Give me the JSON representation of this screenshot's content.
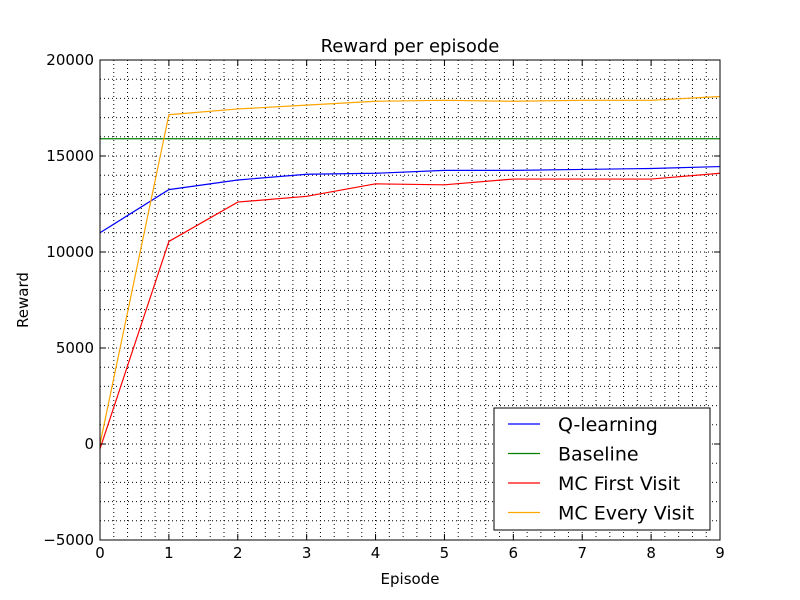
{
  "chart_data": {
    "type": "line",
    "title": "Reward per episode",
    "xlabel": "Episode",
    "ylabel": "Reward",
    "xlim": [
      0,
      9
    ],
    "ylim": [
      -5000,
      20000
    ],
    "xticks": [
      0,
      1,
      2,
      3,
      4,
      5,
      6,
      7,
      8,
      9
    ],
    "yticks": [
      -5000,
      0,
      5000,
      10000,
      15000,
      20000
    ],
    "ytick_labels": [
      "−5000",
      "0",
      "5000",
      "10000",
      "15000",
      "20000"
    ],
    "grid": "dotted minor",
    "legend_position": "lower-right",
    "x": [
      0,
      1,
      2,
      3,
      4,
      5,
      6,
      7,
      8,
      9
    ],
    "series": [
      {
        "name": "Q-learning",
        "color": "#0000ff",
        "values": [
          11000,
          13250,
          13750,
          14050,
          14100,
          14250,
          14250,
          14300,
          14350,
          14450
        ]
      },
      {
        "name": "Baseline",
        "color": "#008000",
        "values": [
          15900,
          15900,
          15900,
          15900,
          15900,
          15900,
          15900,
          15900,
          15900,
          15900
        ]
      },
      {
        "name": "MC First Visit",
        "color": "#ff0000",
        "values": [
          -250,
          10550,
          12600,
          12900,
          13550,
          13500,
          13800,
          13800,
          13800,
          14100
        ]
      },
      {
        "name": "MC Every Visit",
        "color": "#ffa500",
        "values": [
          0,
          17150,
          17450,
          17650,
          17850,
          17900,
          17850,
          17900,
          17900,
          18100
        ]
      }
    ]
  }
}
